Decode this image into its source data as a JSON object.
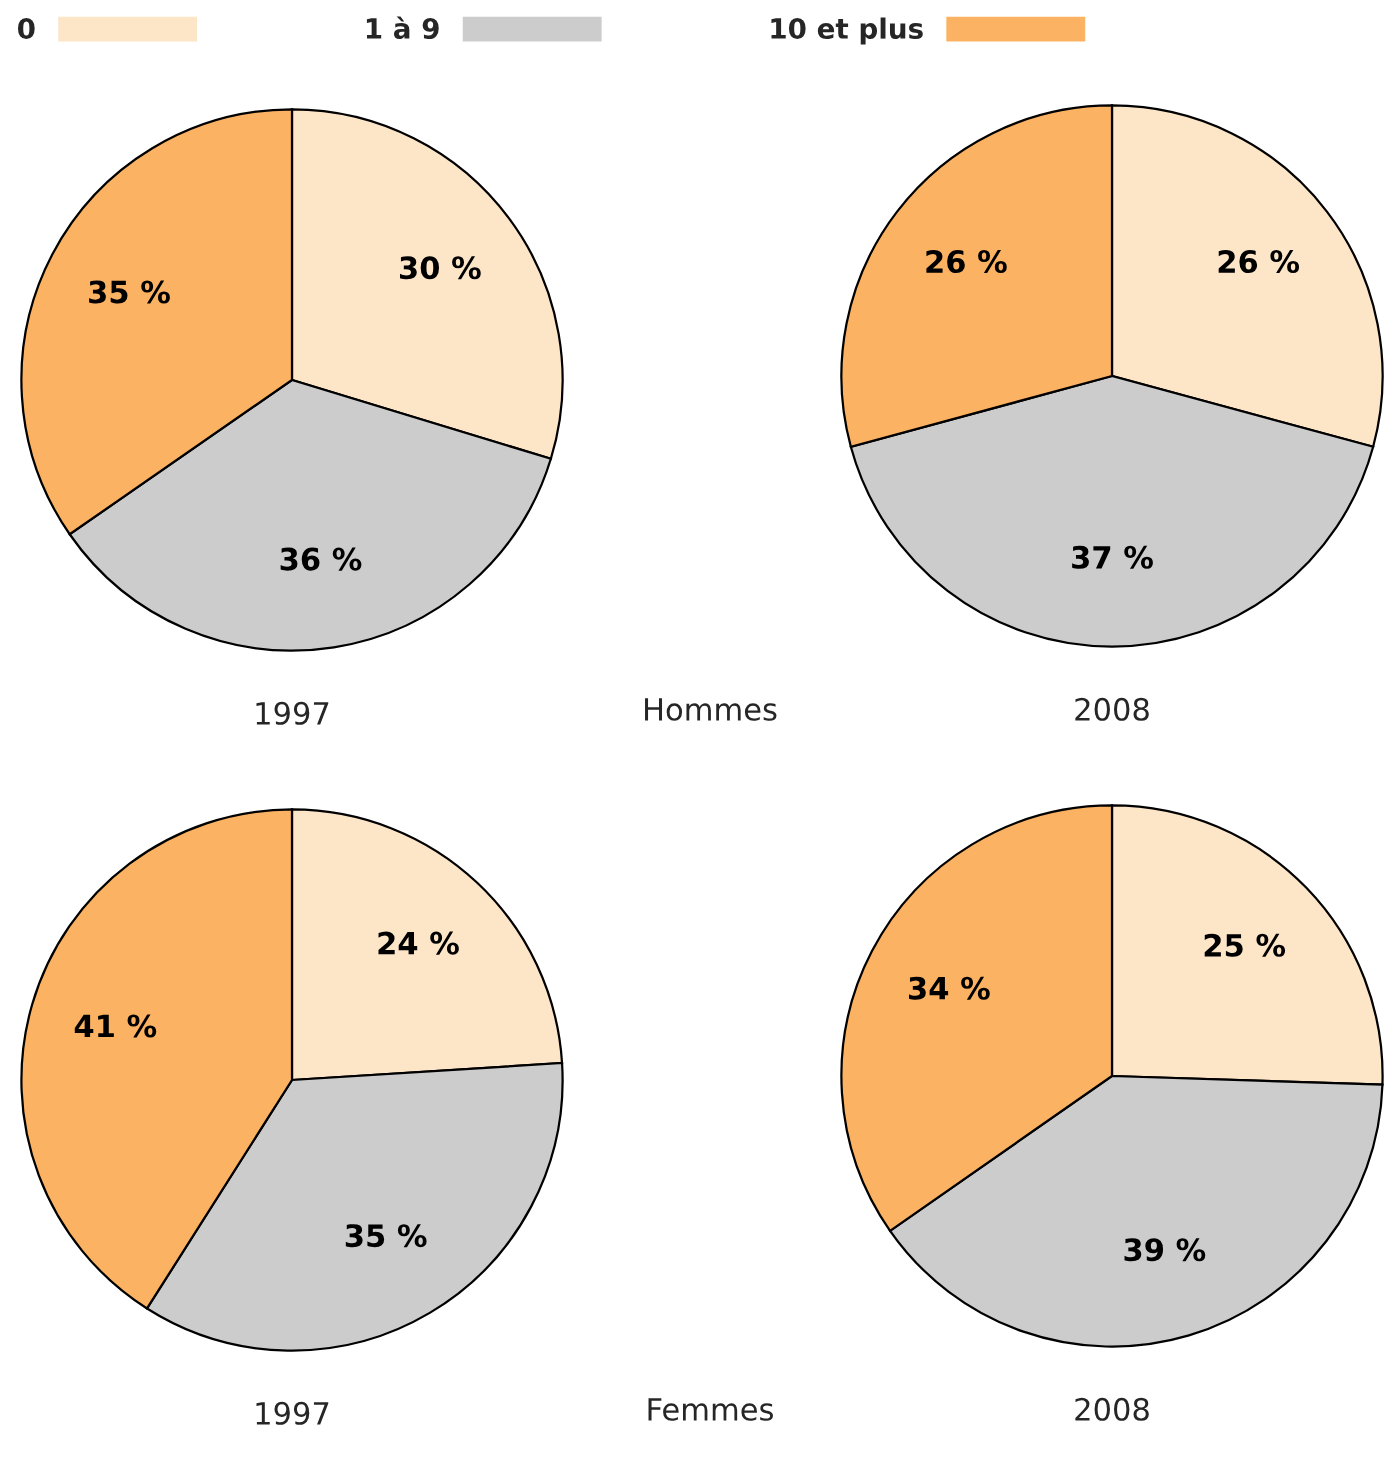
{
  "chart_data": [
    {
      "type": "pie",
      "title": "1997",
      "categories": [
        "0",
        "1 à 9",
        "10 et plus"
      ],
      "values": [
        30,
        36,
        35
      ],
      "value_labels": [
        "30 %",
        "36 %",
        "35 %"
      ],
      "colors": [
        "#fde5c8",
        "#cccccc",
        "#fbb262"
      ],
      "legend": "top",
      "annotations": [
        "Hommes"
      ]
    },
    {
      "type": "pie",
      "title": "2008",
      "categories": [
        null,
        null,
        null
      ],
      "values": [
        26,
        37,
        26
      ],
      "value_labels": [
        "26 %",
        "37 %",
        "26 %"
      ],
      "colors": [
        "#fde5c8",
        "#cccccc",
        "#fbb262"
      ]
    },
    {
      "type": "pie",
      "title": "1997",
      "categories": [
        null,
        null,
        null
      ],
      "values": [
        24,
        35,
        41
      ],
      "value_labels": [
        "24 %",
        "35 %",
        "41 %"
      ],
      "colors": [
        "#fde5c8",
        "#cccccc",
        "#fbb262"
      ],
      "annotations": [
        "Femmes"
      ]
    },
    {
      "type": "pie",
      "title": "2008",
      "categories": [
        null,
        null,
        null
      ],
      "values": [
        25,
        39,
        34
      ],
      "value_labels": [
        "25 %",
        "39 %",
        "34 %"
      ],
      "colors": [
        "#fde5c8",
        "#cccccc",
        "#fbb262"
      ]
    }
  ]
}
